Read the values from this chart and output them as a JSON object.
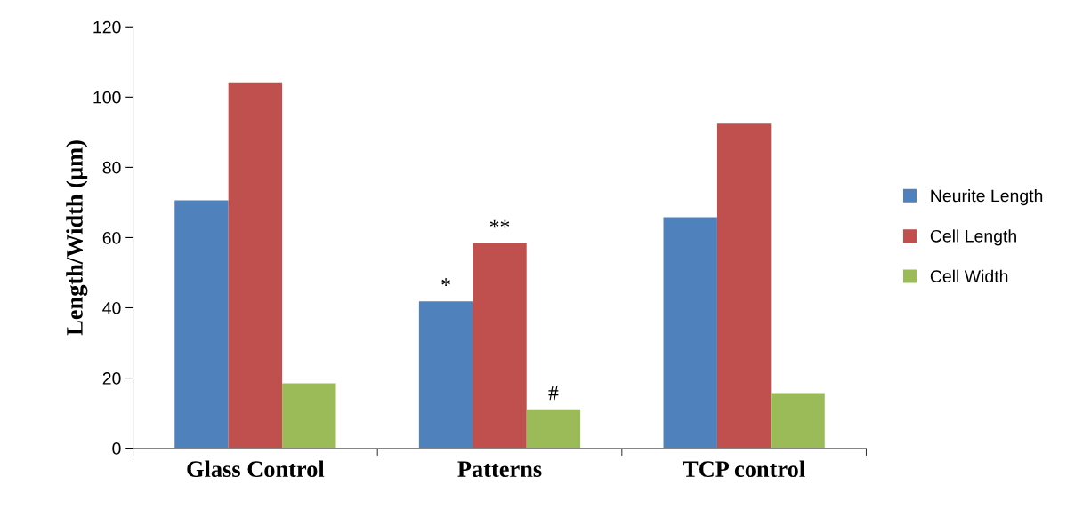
{
  "chart_data": {
    "type": "bar",
    "ylabel": "Length/Width (µm)",
    "categories": [
      "Glass Control",
      "Patterns",
      "TCP control"
    ],
    "series": [
      {
        "name": "Neurite Length",
        "color": "#4f81bd",
        "values": [
          70.6,
          41.8,
          65.8
        ]
      },
      {
        "name": "Cell Length",
        "color": "#c0504d",
        "values": [
          104.2,
          58.4,
          92.4
        ]
      },
      {
        "name": "Cell Width",
        "color": "#9bbb59",
        "values": [
          18.5,
          11.1,
          15.7
        ]
      }
    ],
    "ylim": [
      0,
      120
    ],
    "yticks": [
      0,
      20,
      40,
      60,
      80,
      100,
      120
    ],
    "grid": false,
    "legend": "right",
    "annotations": [
      "*",
      "**",
      "#"
    ]
  }
}
